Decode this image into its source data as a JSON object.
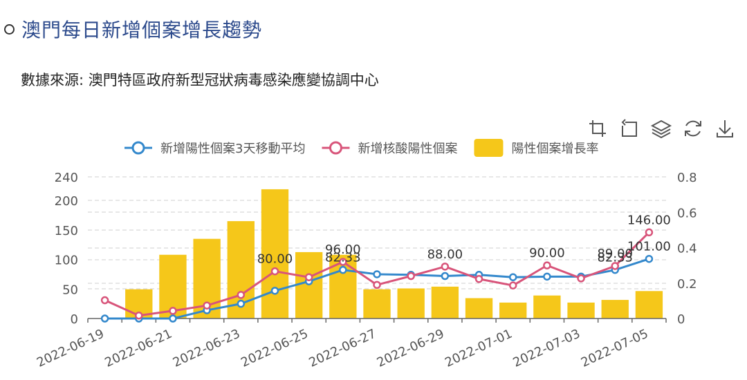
{
  "header": {
    "title": "澳門每日新增個案增長趨勢",
    "subtitle": "數據來源: 澳門特區政府新型冠狀病毒感染應變協調中心"
  },
  "toolbox": [
    {
      "name": "zoom-icon"
    },
    {
      "name": "zoom-reset-icon"
    },
    {
      "name": "layers-icon"
    },
    {
      "name": "refresh-icon"
    },
    {
      "name": "download-icon"
    }
  ],
  "colors": {
    "avg_line": "#3388cc",
    "nucleic_line": "#d8547a",
    "bar": "#f5c71a",
    "grid": "#cfcfcf",
    "axis_text": "#555555"
  },
  "chart_data": {
    "type": "bar",
    "categories": [
      "2022-06-19",
      "2022-06-20",
      "2022-06-21",
      "2022-06-22",
      "2022-06-23",
      "2022-06-24",
      "2022-06-25",
      "2022-06-26",
      "2022-06-27",
      "2022-06-28",
      "2022-06-29",
      "2022-06-30",
      "2022-07-01",
      "2022-07-02",
      "2022-07-03",
      "2022-07-04",
      "2022-07-05"
    ],
    "x_tick_labels": [
      "2022-06-19",
      "2022-06-21",
      "2022-06-23",
      "2022-06-25",
      "2022-06-27",
      "2022-06-29",
      "2022-07-01",
      "2022-07-03",
      "2022-07-05"
    ],
    "y_left": {
      "min": 0,
      "max": 240,
      "ticks": [
        "0",
        "50",
        "100",
        "150",
        "200",
        "240"
      ],
      "tick_values": [
        0,
        50,
        100,
        150,
        200,
        240
      ]
    },
    "y_right": {
      "min": 0,
      "max": 0.8,
      "ticks": [
        "0",
        "0.2",
        "0.4",
        "0.6",
        "0.8"
      ],
      "tick_values": [
        0,
        0.2,
        0.4,
        0.6,
        0.8
      ]
    },
    "legend": {
      "placement": "top"
    },
    "series": [
      {
        "name": "新增陽性個案3天移動平均",
        "kind": "line",
        "axis": "left",
        "values": [
          0,
          0,
          0,
          14,
          25,
          47,
          63,
          82.33,
          75,
          74,
          72,
          74,
          70,
          71,
          71,
          82.33,
          101
        ],
        "labels": {
          "7": "82.33",
          "15": "82.33",
          "16": "101.00"
        }
      },
      {
        "name": "新增核酸陽性個案",
        "kind": "line",
        "axis": "left",
        "values": [
          31,
          5,
          13,
          22,
          40,
          80,
          70,
          96,
          57,
          72,
          88,
          67,
          56,
          90,
          68,
          89,
          146
        ],
        "labels": {
          "5": "80.00",
          "7": "96.00",
          "10": "88.00",
          "13": "90.00",
          "15": "89.00",
          "16": "146.00"
        }
      },
      {
        "name": "陽性個案增長率",
        "kind": "bar",
        "axis": "right",
        "values": [
          0,
          0.165,
          0.36,
          0.45,
          0.55,
          0.73,
          0.375,
          0.36,
          0.165,
          0.17,
          0.18,
          0.115,
          0.09,
          0.13,
          0.09,
          0.105,
          0.155
        ]
      }
    ]
  }
}
